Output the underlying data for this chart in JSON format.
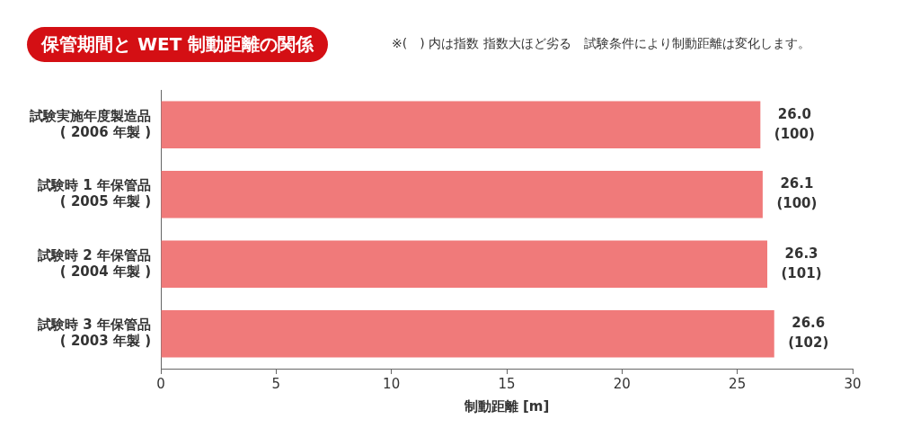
{
  "chart_data": {
    "type": "bar",
    "orientation": "horizontal",
    "title": "保管期間と WET 制動距離の関係",
    "subtitle": "※(　) 内は指数 指数大ほど劣る　試験条件により制動距離は変化します。",
    "categories": [
      "試験実施年度製造品\n( 2006 年製 )",
      "試験時 1 年保管品\n( 2005 年製 )",
      "試験時 2 年保管品\n( 2004 年製 )",
      "試験時 3 年保管品\n( 2003 年製 )"
    ],
    "values": [
      26.0,
      26.1,
      26.3,
      26.6
    ],
    "value_labels": [
      "26.0\n(100)",
      "26.1\n(100)",
      "26.3\n(101)",
      "26.6\n(102)"
    ],
    "color": "#f07a7a",
    "xlabel": "制動距離 [m]",
    "xlim": [
      0,
      30
    ],
    "xticks": [
      0,
      5,
      10,
      15,
      20,
      25,
      30
    ],
    "grid": false,
    "legend": false
  }
}
